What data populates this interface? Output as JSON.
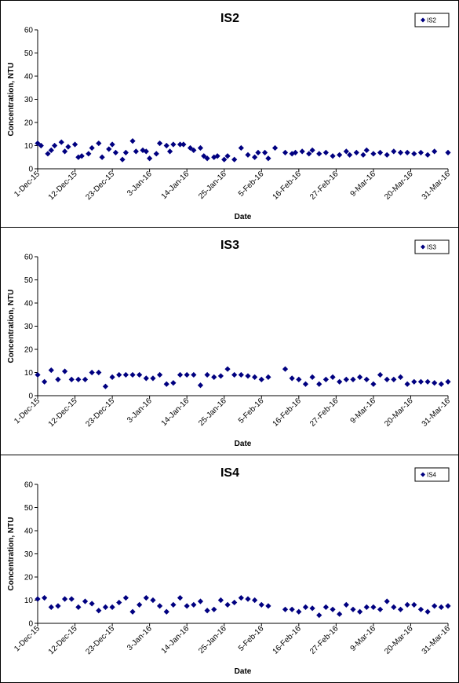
{
  "chart_data": [
    {
      "type": "scatter",
      "title": "IS2",
      "xlabel": "Date",
      "ylabel": "Concentration, NTU",
      "ylim": [
        0,
        60
      ],
      "yticks": [
        0,
        10,
        20,
        30,
        40,
        50,
        60
      ],
      "xlim": [
        "2015-12-01",
        "2016-03-31"
      ],
      "xtick_labels": [
        "1-Dec-15",
        "12-Dec-15",
        "23-Dec-15",
        "3-Jan-16",
        "14-Jan-16",
        "25-Jan-16",
        "5-Feb-16",
        "16-Feb-16",
        "27-Feb-16",
        "9-Mar-16",
        "20-Mar-16",
        "31-Mar-16"
      ],
      "grid": false,
      "legend": "top-right",
      "marker_color": "#000080",
      "series": [
        {
          "name": "IS2",
          "x": [
            "2015-12-01",
            "2015-12-02",
            "2015-12-04",
            "2015-12-05",
            "2015-12-06",
            "2015-12-08",
            "2015-12-09",
            "2015-12-10",
            "2015-12-12",
            "2015-12-13",
            "2015-12-14",
            "2015-12-16",
            "2015-12-17",
            "2015-12-19",
            "2015-12-20",
            "2015-12-22",
            "2015-12-23",
            "2015-12-24",
            "2015-12-26",
            "2015-12-27",
            "2015-12-29",
            "2015-12-30",
            "2016-01-01",
            "2016-01-02",
            "2016-01-03",
            "2016-01-05",
            "2016-01-06",
            "2016-01-08",
            "2016-01-09",
            "2016-01-10",
            "2016-01-12",
            "2016-01-13",
            "2016-01-15",
            "2016-01-16",
            "2016-01-18",
            "2016-01-19",
            "2016-01-20",
            "2016-01-22",
            "2016-01-23",
            "2016-01-25",
            "2016-01-26",
            "2016-01-28",
            "2016-01-30",
            "2016-02-01",
            "2016-02-03",
            "2016-02-04",
            "2016-02-06",
            "2016-02-07",
            "2016-02-09",
            "2016-02-12",
            "2016-02-14",
            "2016-02-15",
            "2016-02-17",
            "2016-02-19",
            "2016-02-20",
            "2016-02-22",
            "2016-02-24",
            "2016-02-26",
            "2016-02-28",
            "2016-03-01",
            "2016-03-02",
            "2016-03-04",
            "2016-03-06",
            "2016-03-07",
            "2016-03-09",
            "2016-03-11",
            "2016-03-13",
            "2016-03-15",
            "2016-03-17",
            "2016-03-19",
            "2016-03-21",
            "2016-03-23",
            "2016-03-25",
            "2016-03-27",
            "2016-03-31"
          ],
          "values": [
            11,
            10,
            6.5,
            8,
            10,
            11.5,
            7.5,
            9.5,
            10.5,
            5,
            5.5,
            6.5,
            9,
            11,
            5,
            8.5,
            10.5,
            7,
            4,
            7,
            12,
            7.5,
            8,
            7.5,
            4.5,
            6.5,
            11,
            10,
            7.5,
            10.5,
            10.5,
            10.5,
            9,
            8,
            9,
            5.5,
            4.5,
            5,
            5.5,
            4,
            5.5,
            4,
            9,
            6,
            5,
            7,
            7,
            4.5,
            9,
            7,
            6.5,
            7,
            7.5,
            6.5,
            8,
            6.5,
            7,
            5.5,
            6,
            7.5,
            6,
            7,
            6,
            8,
            6.5,
            7,
            6,
            7.5,
            7,
            7,
            6.5,
            7,
            6,
            7.5,
            7
          ]
        }
      ]
    },
    {
      "type": "scatter",
      "title": "IS3",
      "xlabel": "Date",
      "ylabel": "Concentration, NTU",
      "ylim": [
        0,
        60
      ],
      "yticks": [
        0,
        10,
        20,
        30,
        40,
        50,
        60
      ],
      "xlim": [
        "2015-12-01",
        "2016-03-31"
      ],
      "xtick_labels": [
        "1-Dec-15",
        "12-Dec-15",
        "23-Dec-15",
        "3-Jan-16",
        "14-Jan-16",
        "25-Jan-16",
        "5-Feb-16",
        "16-Feb-16",
        "27-Feb-16",
        "9-Mar-16",
        "20-Mar-16",
        "31-Mar-16"
      ],
      "grid": false,
      "legend": "top-right",
      "marker_color": "#000080",
      "series": [
        {
          "name": "IS3",
          "x": [
            "2015-12-01",
            "2015-12-03",
            "2015-12-05",
            "2015-12-07",
            "2015-12-09",
            "2015-12-11",
            "2015-12-13",
            "2015-12-15",
            "2015-12-17",
            "2015-12-19",
            "2015-12-21",
            "2015-12-23",
            "2015-12-25",
            "2015-12-27",
            "2015-12-29",
            "2015-12-31",
            "2016-01-02",
            "2016-01-04",
            "2016-01-06",
            "2016-01-08",
            "2016-01-10",
            "2016-01-12",
            "2016-01-14",
            "2016-01-16",
            "2016-01-18",
            "2016-01-20",
            "2016-01-22",
            "2016-01-24",
            "2016-01-26",
            "2016-01-28",
            "2016-01-30",
            "2016-02-01",
            "2016-02-03",
            "2016-02-05",
            "2016-02-07",
            "2016-02-12",
            "2016-02-14",
            "2016-02-16",
            "2016-02-18",
            "2016-02-20",
            "2016-02-22",
            "2016-02-24",
            "2016-02-26",
            "2016-02-28",
            "2016-03-01",
            "2016-03-03",
            "2016-03-05",
            "2016-03-07",
            "2016-03-09",
            "2016-03-11",
            "2016-03-13",
            "2016-03-15",
            "2016-03-17",
            "2016-03-19",
            "2016-03-21",
            "2016-03-23",
            "2016-03-25",
            "2016-03-27",
            "2016-03-29",
            "2016-03-31"
          ],
          "values": [
            9,
            6,
            11,
            7,
            10.5,
            7,
            7,
            7,
            10,
            10,
            4,
            8,
            9,
            9,
            9,
            9,
            7.5,
            7.5,
            9,
            5,
            5.5,
            9,
            9,
            9,
            4.5,
            9,
            8,
            8.5,
            11.5,
            9,
            9,
            8.5,
            8,
            7,
            8,
            11.5,
            7.5,
            7,
            5,
            8,
            5,
            7,
            8,
            6,
            7,
            7,
            8,
            7,
            5,
            9,
            7,
            7,
            8,
            5,
            6,
            6,
            6,
            5.5,
            5,
            6
          ]
        }
      ]
    },
    {
      "type": "scatter",
      "title": "IS4",
      "xlabel": "Date",
      "ylabel": "Concentration, NTU",
      "ylim": [
        0,
        60
      ],
      "yticks": [
        0,
        10,
        20,
        30,
        40,
        50,
        60
      ],
      "xlim": [
        "2015-12-01",
        "2016-03-31"
      ],
      "xtick_labels": [
        "1-Dec-15",
        "12-Dec-15",
        "23-Dec-15",
        "3-Jan-16",
        "14-Jan-16",
        "25-Jan-16",
        "5-Feb-16",
        "16-Feb-16",
        "27-Feb-16",
        "9-Mar-16",
        "20-Mar-16",
        "31-Mar-16"
      ],
      "grid": false,
      "legend": "top-right",
      "marker_color": "#000080",
      "series": [
        {
          "name": "IS4",
          "x": [
            "2015-12-01",
            "2015-12-03",
            "2015-12-05",
            "2015-12-07",
            "2015-12-09",
            "2015-12-11",
            "2015-12-13",
            "2015-12-15",
            "2015-12-17",
            "2015-12-19",
            "2015-12-21",
            "2015-12-23",
            "2015-12-25",
            "2015-12-27",
            "2015-12-29",
            "2015-12-31",
            "2016-01-02",
            "2016-01-04",
            "2016-01-06",
            "2016-01-08",
            "2016-01-10",
            "2016-01-12",
            "2016-01-14",
            "2016-01-16",
            "2016-01-18",
            "2016-01-20",
            "2016-01-22",
            "2016-01-24",
            "2016-01-26",
            "2016-01-28",
            "2016-01-30",
            "2016-02-01",
            "2016-02-03",
            "2016-02-05",
            "2016-02-07",
            "2016-02-12",
            "2016-02-14",
            "2016-02-16",
            "2016-02-18",
            "2016-02-20",
            "2016-02-22",
            "2016-02-24",
            "2016-02-26",
            "2016-02-28",
            "2016-03-01",
            "2016-03-03",
            "2016-03-05",
            "2016-03-07",
            "2016-03-09",
            "2016-03-11",
            "2016-03-13",
            "2016-03-15",
            "2016-03-17",
            "2016-03-19",
            "2016-03-21",
            "2016-03-23",
            "2016-03-25",
            "2016-03-27",
            "2016-03-29",
            "2016-03-31"
          ],
          "values": [
            10.5,
            11,
            7,
            7.5,
            10.5,
            10.5,
            7,
            9.5,
            8.5,
            5.5,
            7,
            7,
            9,
            11,
            5,
            8,
            11,
            10,
            7.5,
            5,
            8,
            11,
            7.5,
            8,
            9.5,
            5.5,
            6,
            10,
            8,
            9,
            11,
            10.5,
            10,
            8,
            7.5,
            6,
            6,
            5,
            7,
            6.5,
            3.5,
            7,
            6,
            4,
            8,
            6,
            5,
            7,
            7,
            6,
            9.5,
            7,
            6,
            8,
            8,
            6,
            5,
            7.5,
            7,
            7.5
          ]
        }
      ]
    }
  ]
}
